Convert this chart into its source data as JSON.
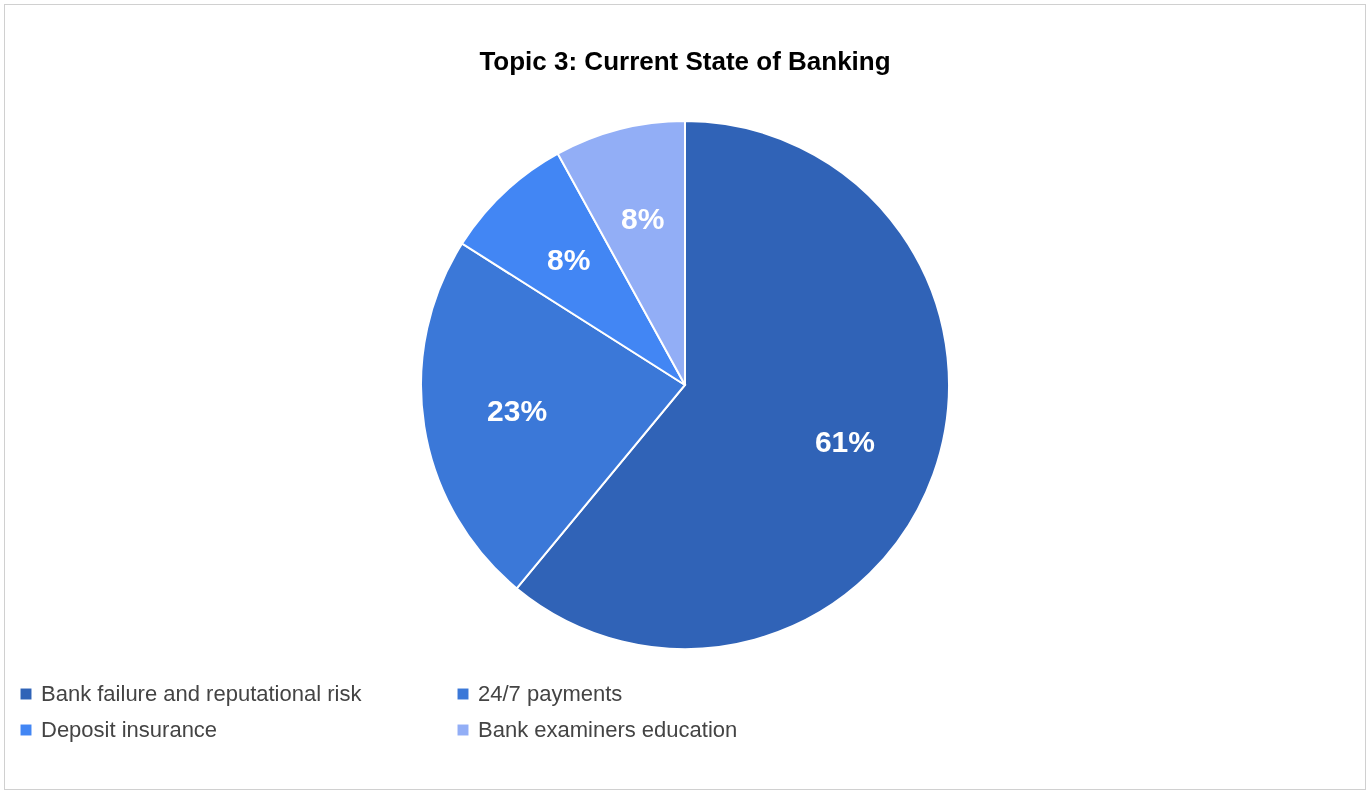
{
  "chart_data": {
    "type": "pie",
    "title": "Topic 3: Current State of Banking",
    "categories": [
      "Bank failure and reputational risk",
      "24/7 payments",
      "Deposit insurance",
      "Bank examiners education"
    ],
    "values": [
      61,
      23,
      8,
      8
    ],
    "value_labels": [
      "61%",
      "23%",
      "8%",
      "8%"
    ],
    "colors": [
      "#3063b7",
      "#3b78d8",
      "#4286f4",
      "#92aef6"
    ],
    "legend": "bottom"
  }
}
